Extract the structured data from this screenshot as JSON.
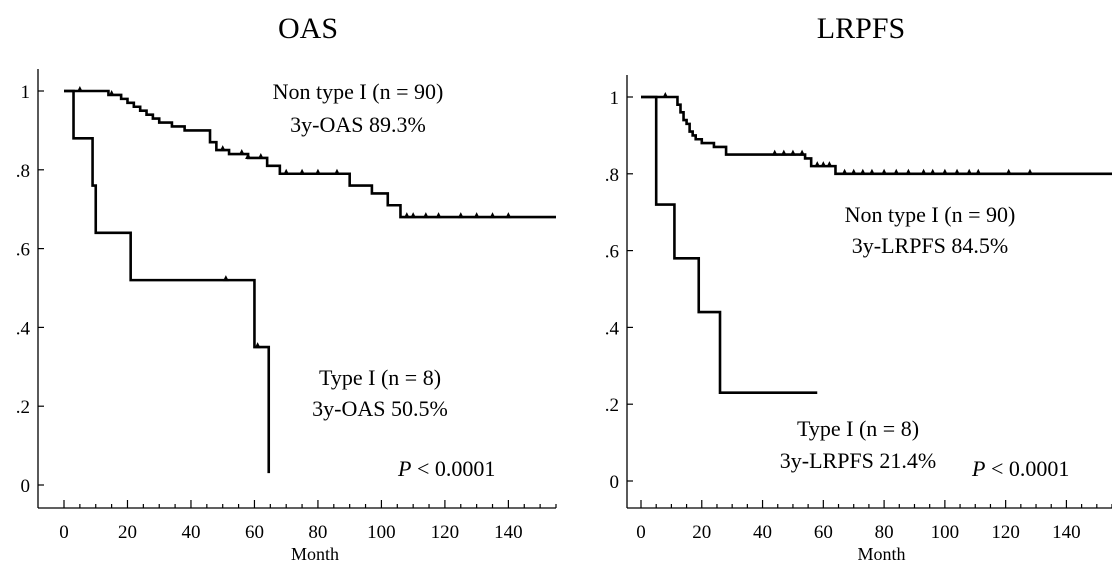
{
  "chart_data": [
    {
      "type": "line",
      "step": true,
      "title": "OAS",
      "xlabel": "Month",
      "ylabel": "",
      "xlim": [
        0,
        155
      ],
      "ylim": [
        0,
        1
      ],
      "xticks": [
        "0",
        "20",
        "40",
        "60",
        "80",
        "100",
        "120",
        "140"
      ],
      "yticks": [
        "0",
        ".2",
        ".4",
        ".6",
        ".8",
        "1"
      ],
      "grid": false,
      "series": [
        {
          "name": "Non type I (n = 90)",
          "x": [
            0,
            10,
            14,
            18,
            20,
            22,
            24,
            26,
            28,
            30,
            34,
            38,
            46,
            48,
            52,
            58,
            64,
            68,
            90,
            97,
            102,
            106,
            155
          ],
          "y": [
            1.0,
            1.0,
            0.99,
            0.98,
            0.97,
            0.96,
            0.95,
            0.94,
            0.93,
            0.92,
            0.91,
            0.9,
            0.87,
            0.85,
            0.84,
            0.83,
            0.81,
            0.79,
            0.76,
            0.74,
            0.71,
            0.68,
            0.68
          ],
          "censored_x": [
            5,
            15,
            50,
            56,
            58,
            62,
            70,
            75,
            80,
            86,
            108,
            110,
            114,
            118,
            125,
            130,
            135,
            140
          ]
        },
        {
          "name": "Type I (n = 8)",
          "x": [
            0,
            3,
            9,
            10,
            21,
            60,
            64,
            64.5
          ],
          "y": [
            1.0,
            0.88,
            0.76,
            0.64,
            0.52,
            0.35,
            0.35,
            0.03
          ],
          "censored_x": [
            51,
            61
          ]
        }
      ],
      "annotations": [
        {
          "label": "Non type I (n = 90)",
          "stat": "3y-OAS 89.3%"
        },
        {
          "label": "Type I (n = 8)",
          "stat": "3y-OAS 50.5%"
        }
      ],
      "p_value": {
        "symbol": "P",
        "text": " < 0.0001"
      }
    },
    {
      "type": "line",
      "step": true,
      "title": "LRPFS",
      "xlabel": "Month",
      "ylabel": "",
      "xlim": [
        0,
        155
      ],
      "ylim": [
        0,
        1
      ],
      "xticks": [
        "0",
        "20",
        "40",
        "60",
        "80",
        "100",
        "120",
        "140"
      ],
      "yticks": [
        "0",
        ".2",
        ".4",
        ".6",
        ".8",
        "1"
      ],
      "grid": false,
      "series": [
        {
          "name": "Non type I (n = 90)",
          "x": [
            0,
            10,
            12,
            13,
            14,
            15,
            16,
            17,
            18,
            20,
            24,
            28,
            54,
            56,
            64,
            155
          ],
          "y": [
            1.0,
            1.0,
            0.98,
            0.96,
            0.94,
            0.93,
            0.91,
            0.9,
            0.89,
            0.88,
            0.87,
            0.85,
            0.84,
            0.82,
            0.8,
            0.8
          ],
          "censored_x": [
            8,
            44,
            47,
            50,
            53,
            58,
            60,
            62,
            67,
            70,
            73,
            76,
            80,
            84,
            88,
            93,
            96,
            100,
            104,
            108,
            111,
            121,
            128
          ]
        },
        {
          "name": "Type I (n = 8)",
          "x": [
            0,
            5,
            11,
            19,
            26,
            58
          ],
          "y": [
            1.0,
            0.72,
            0.58,
            0.44,
            0.23,
            0.23
          ],
          "censored_x": []
        }
      ],
      "annotations": [
        {
          "label": "Non type I (n = 90)",
          "stat": "3y-LRPFS 84.5%"
        },
        {
          "label": "Type I (n = 8)",
          "stat": "3y-LRPFS  21.4%"
        }
      ],
      "p_value": {
        "symbol": "P",
        "text": " < 0.0001"
      }
    }
  ]
}
